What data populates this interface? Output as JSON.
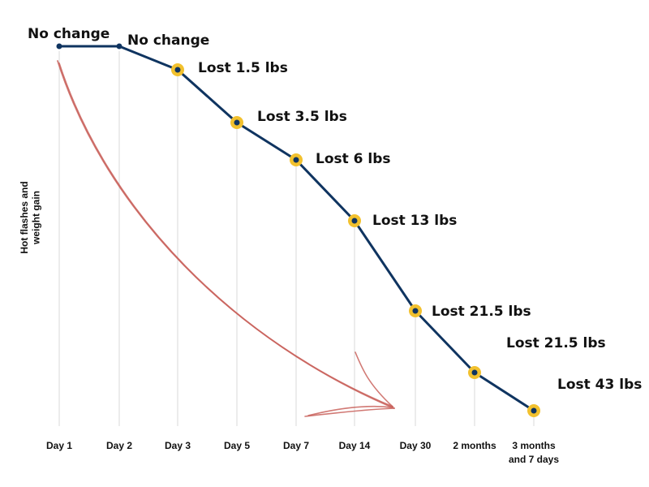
{
  "chart_data": {
    "type": "line",
    "ylabel": [
      "Hot flashes and",
      "weight gain"
    ],
    "categories": [
      "Day 1",
      "Day 2",
      "Day 3",
      "Day 5",
      "Day 7",
      "Day 14",
      "Day 30",
      "2 months",
      "3 months and 7 days"
    ],
    "tick_labels": [
      [
        "Day 1"
      ],
      [
        "Day 2"
      ],
      [
        "Day 3"
      ],
      [
        "Day 5"
      ],
      [
        "Day 7"
      ],
      [
        "Day 14"
      ],
      [
        "Day 30"
      ],
      [
        "2 months"
      ],
      [
        "3 months",
        "and 7 days"
      ]
    ],
    "values": [
      0,
      0,
      -1.5,
      -3.5,
      -6,
      -13,
      -21.5,
      -21.5,
      -43
    ],
    "point_labels": [
      "No change",
      "No change",
      "Lost 1.5 lbs",
      "Lost 3.5 lbs",
      "Lost 6 lbs",
      "Lost 13 lbs",
      "Lost 21.5 lbs",
      "Lost 21.5 lbs",
      "Lost 43 lbs"
    ],
    "highlighted_points": [
      2,
      3,
      4,
      5,
      6,
      7,
      8
    ],
    "grid": "vertical",
    "decoration": "hand-drawn downward arrow"
  },
  "colors": {
    "line": "#0f3460",
    "highlight": "#f2c12e",
    "arrow": "#c9625c",
    "grid": "#d8d8d8",
    "text": "#111111"
  }
}
